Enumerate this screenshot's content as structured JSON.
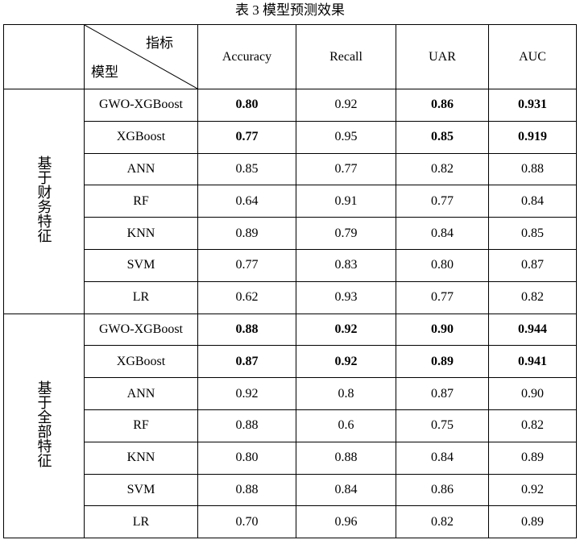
{
  "caption": "表 3 模型预测效果",
  "header": {
    "diag_top": "指标",
    "diag_bottom": "模型",
    "columns": [
      "Accuracy",
      "Recall",
      "UAR",
      "AUC"
    ]
  },
  "groups": [
    {
      "label": "基于财务特征",
      "rows": [
        {
          "model": "GWO-XGBoost",
          "values": [
            "0.80",
            "0.92",
            "0.86",
            "0.931"
          ],
          "bold": [
            true,
            false,
            true,
            true
          ]
        },
        {
          "model": "XGBoost",
          "values": [
            "0.77",
            "0.95",
            "0.85",
            "0.919"
          ],
          "bold": [
            true,
            false,
            true,
            true
          ]
        },
        {
          "model": "ANN",
          "values": [
            "0.85",
            "0.77",
            "0.82",
            "0.88"
          ],
          "bold": [
            false,
            false,
            false,
            false
          ]
        },
        {
          "model": "RF",
          "values": [
            "0.64",
            "0.91",
            "0.77",
            "0.84"
          ],
          "bold": [
            false,
            false,
            false,
            false
          ]
        },
        {
          "model": "KNN",
          "values": [
            "0.89",
            "0.79",
            "0.84",
            "0.85"
          ],
          "bold": [
            false,
            false,
            false,
            false
          ]
        },
        {
          "model": "SVM",
          "values": [
            "0.77",
            "0.83",
            "0.80",
            "0.87"
          ],
          "bold": [
            false,
            false,
            false,
            false
          ]
        },
        {
          "model": "LR",
          "values": [
            "0.62",
            "0.93",
            "0.77",
            "0.82"
          ],
          "bold": [
            false,
            false,
            false,
            false
          ]
        }
      ]
    },
    {
      "label": "基于全部特征",
      "rows": [
        {
          "model": "GWO-XGBoost",
          "values": [
            "0.88",
            "0.92",
            "0.90",
            "0.944"
          ],
          "bold": [
            true,
            true,
            true,
            true
          ]
        },
        {
          "model": "XGBoost",
          "values": [
            "0.87",
            "0.92",
            "0.89",
            "0.941"
          ],
          "bold": [
            true,
            true,
            true,
            true
          ]
        },
        {
          "model": "ANN",
          "values": [
            "0.92",
            "0.8",
            "0.87",
            "0.90"
          ],
          "bold": [
            false,
            false,
            false,
            false
          ]
        },
        {
          "model": "RF",
          "values": [
            "0.88",
            "0.6",
            "0.75",
            "0.82"
          ],
          "bold": [
            false,
            false,
            false,
            false
          ]
        },
        {
          "model": "KNN",
          "values": [
            "0.80",
            "0.88",
            "0.84",
            "0.89"
          ],
          "bold": [
            false,
            false,
            false,
            false
          ]
        },
        {
          "model": "SVM",
          "values": [
            "0.88",
            "0.84",
            "0.86",
            "0.92"
          ],
          "bold": [
            false,
            false,
            false,
            false
          ]
        },
        {
          "model": "LR",
          "values": [
            "0.70",
            "0.96",
            "0.82",
            "0.89"
          ],
          "bold": [
            false,
            false,
            false,
            false
          ]
        }
      ]
    }
  ]
}
